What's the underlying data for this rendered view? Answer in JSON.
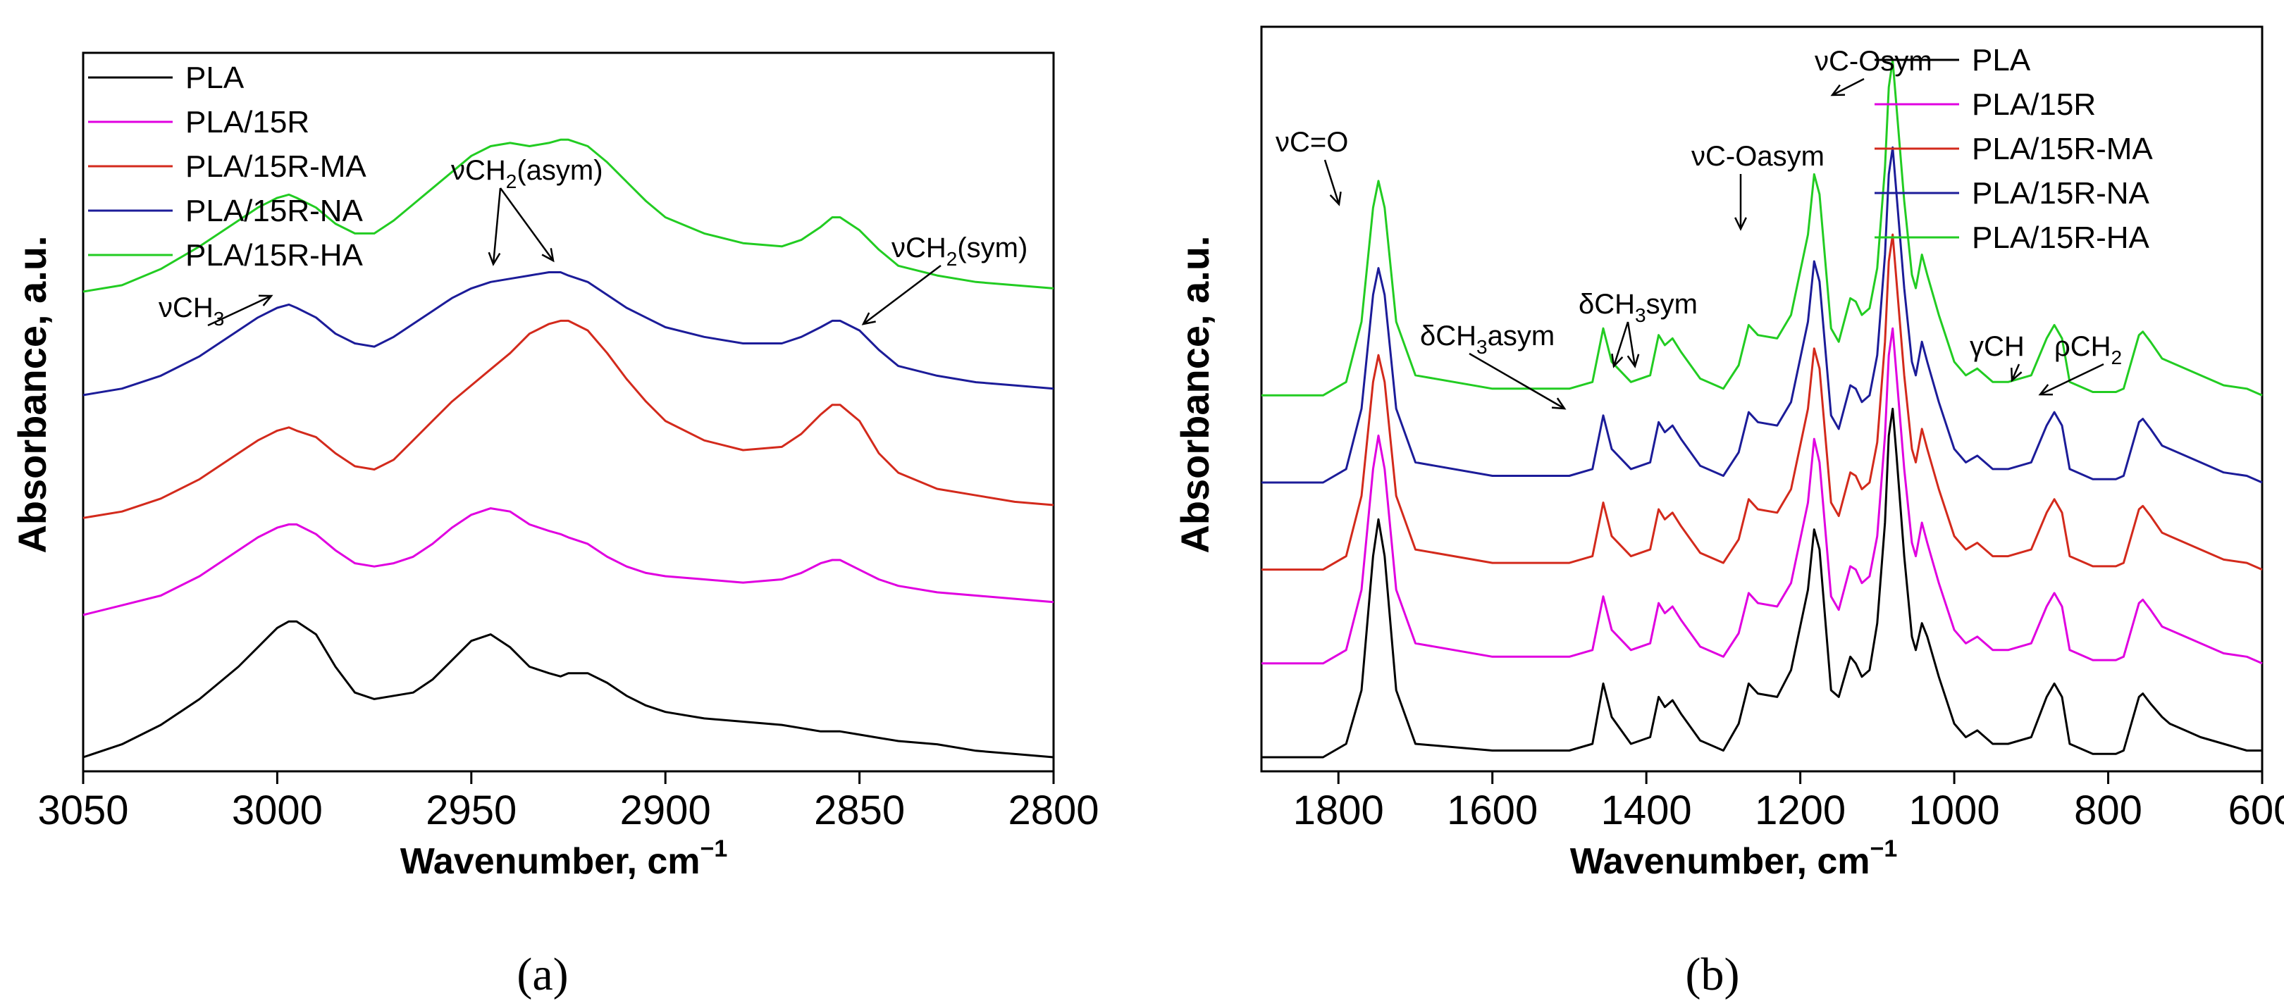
{
  "panels": [
    {
      "id": "a",
      "panel_label": "(a)",
      "xlabel": "Wavenumber, cm",
      "xlabel_sup": "−1",
      "ylabel": "Absorbance, a.u.",
      "chart_data": {
        "type": "line",
        "xlim": [
          3050,
          2800
        ],
        "x_ticks": [
          3050,
          3000,
          2950,
          2900,
          2850,
          2800
        ],
        "x_tick_labels": [
          "3050",
          "3000",
          "2950",
          "2900",
          "2850",
          "2800"
        ],
        "y_ticks_shown": false,
        "ylim": [
          0,
          1.0
        ],
        "x": [
          3050,
          3040,
          3030,
          3020,
          3010,
          3005,
          3000,
          2997,
          2995,
          2990,
          2985,
          2980,
          2975,
          2970,
          2965,
          2960,
          2955,
          2950,
          2945,
          2940,
          2935,
          2930,
          2927,
          2925,
          2920,
          2915,
          2910,
          2905,
          2900,
          2890,
          2880,
          2870,
          2865,
          2860,
          2857,
          2855,
          2850,
          2845,
          2840,
          2830,
          2820,
          2810,
          2800
        ],
        "series": [
          {
            "name": "PLA",
            "color": "#000000",
            "values": [
              0.0,
              0.02,
              0.05,
              0.09,
              0.14,
              0.17,
              0.2,
              0.21,
              0.21,
              0.19,
              0.14,
              0.1,
              0.09,
              0.095,
              0.1,
              0.12,
              0.15,
              0.18,
              0.19,
              0.17,
              0.14,
              0.13,
              0.125,
              0.13,
              0.13,
              0.115,
              0.095,
              0.08,
              0.07,
              0.06,
              0.055,
              0.05,
              0.045,
              0.04,
              0.04,
              0.04,
              0.035,
              0.03,
              0.025,
              0.02,
              0.01,
              0.005,
              0.0
            ]
          },
          {
            "name": "PLA/15R",
            "color": "#e000e0",
            "values": [
              0.22,
              0.235,
              0.25,
              0.28,
              0.32,
              0.34,
              0.355,
              0.36,
              0.36,
              0.345,
              0.32,
              0.3,
              0.295,
              0.3,
              0.31,
              0.33,
              0.355,
              0.375,
              0.385,
              0.38,
              0.36,
              0.35,
              0.345,
              0.34,
              0.33,
              0.31,
              0.295,
              0.285,
              0.28,
              0.275,
              0.27,
              0.275,
              0.285,
              0.3,
              0.305,
              0.305,
              0.29,
              0.275,
              0.265,
              0.255,
              0.25,
              0.245,
              0.24
            ]
          },
          {
            "name": "PLA/15R-MA",
            "color": "#d32a1c",
            "values": [
              0.37,
              0.38,
              0.4,
              0.43,
              0.47,
              0.49,
              0.505,
              0.51,
              0.505,
              0.495,
              0.47,
              0.45,
              0.445,
              0.46,
              0.49,
              0.52,
              0.55,
              0.575,
              0.6,
              0.625,
              0.655,
              0.67,
              0.675,
              0.675,
              0.66,
              0.625,
              0.585,
              0.55,
              0.52,
              0.49,
              0.475,
              0.48,
              0.5,
              0.53,
              0.545,
              0.545,
              0.52,
              0.47,
              0.44,
              0.415,
              0.405,
              0.395,
              0.39
            ]
          },
          {
            "name": "PLA/15R-NA",
            "color": "#1c1c99",
            "values": [
              0.56,
              0.57,
              0.59,
              0.62,
              0.66,
              0.68,
              0.695,
              0.7,
              0.695,
              0.68,
              0.655,
              0.64,
              0.635,
              0.65,
              0.67,
              0.69,
              0.71,
              0.725,
              0.735,
              0.74,
              0.745,
              0.75,
              0.75,
              0.745,
              0.735,
              0.715,
              0.695,
              0.68,
              0.665,
              0.65,
              0.64,
              0.64,
              0.65,
              0.665,
              0.675,
              0.675,
              0.66,
              0.63,
              0.605,
              0.59,
              0.58,
              0.575,
              0.57
            ]
          },
          {
            "name": "PLA/15R-HA",
            "color": "#22cc22",
            "values": [
              0.72,
              0.73,
              0.755,
              0.79,
              0.83,
              0.85,
              0.865,
              0.87,
              0.865,
              0.85,
              0.825,
              0.81,
              0.81,
              0.83,
              0.855,
              0.88,
              0.905,
              0.93,
              0.945,
              0.95,
              0.945,
              0.95,
              0.955,
              0.955,
              0.945,
              0.92,
              0.89,
              0.86,
              0.835,
              0.81,
              0.795,
              0.79,
              0.8,
              0.82,
              0.835,
              0.835,
              0.815,
              0.785,
              0.76,
              0.745,
              0.735,
              0.73,
              0.725
            ]
          }
        ],
        "annotations": [
          {
            "text": "νCH",
            "sub": "3",
            "tail": "",
            "x": 3000,
            "y": 0.87
          },
          {
            "text": "νCH",
            "sub": "2",
            "tail": "(asym)",
            "x": 2947,
            "y": 0.955
          },
          {
            "text": "νCH",
            "sub": "2",
            "tail": "(sym)",
            "x": 2855,
            "y": 0.835
          }
        ]
      }
    },
    {
      "id": "b",
      "panel_label": "(b)",
      "xlabel": "Wavenumber, cm",
      "xlabel_sup": "−1",
      "ylabel": "Absorbance, a.u.",
      "chart_data": {
        "type": "line",
        "xlim": [
          1900,
          600
        ],
        "x_ticks": [
          1800,
          1600,
          1400,
          1200,
          1000,
          800,
          600
        ],
        "x_tick_labels": [
          "1800",
          "1600",
          "1400",
          "1200",
          "1000",
          "800",
          "600"
        ],
        "y_ticks_shown": false,
        "ylim": [
          0,
          1.0
        ],
        "x": [
          1900,
          1820,
          1790,
          1770,
          1755,
          1748,
          1740,
          1725,
          1700,
          1600,
          1500,
          1470,
          1456,
          1445,
          1420,
          1395,
          1384,
          1376,
          1366,
          1355,
          1330,
          1300,
          1280,
          1267,
          1255,
          1230,
          1212,
          1190,
          1182,
          1175,
          1160,
          1150,
          1135,
          1128,
          1120,
          1110,
          1100,
          1090,
          1085,
          1080,
          1075,
          1065,
          1055,
          1050,
          1042,
          1035,
          1020,
          1000,
          985,
          970,
          960,
          950,
          930,
          900,
          880,
          870,
          860,
          850,
          820,
          790,
          780,
          760,
          755,
          745,
          730,
          720,
          700,
          680,
          650,
          620,
          600
        ],
        "series": [
          {
            "name": "PLA",
            "color": "#000000",
            "values": [
              0.0,
              0.0,
              0.02,
              0.1,
              0.3,
              0.355,
              0.3,
              0.1,
              0.02,
              0.01,
              0.01,
              0.02,
              0.11,
              0.06,
              0.02,
              0.03,
              0.09,
              0.075,
              0.085,
              0.065,
              0.025,
              0.01,
              0.05,
              0.11,
              0.095,
              0.09,
              0.13,
              0.25,
              0.34,
              0.31,
              0.1,
              0.09,
              0.15,
              0.14,
              0.12,
              0.13,
              0.2,
              0.35,
              0.48,
              0.52,
              0.45,
              0.3,
              0.18,
              0.16,
              0.2,
              0.18,
              0.12,
              0.05,
              0.03,
              0.04,
              0.03,
              0.02,
              0.02,
              0.03,
              0.09,
              0.11,
              0.09,
              0.02,
              0.005,
              0.005,
              0.01,
              0.09,
              0.095,
              0.08,
              0.06,
              0.05,
              0.04,
              0.03,
              0.02,
              0.01,
              0.01
            ]
          },
          {
            "name": "PLA/15R",
            "color": "#e000e0",
            "values": [
              0.14,
              0.14,
              0.16,
              0.25,
              0.43,
              0.48,
              0.43,
              0.25,
              0.17,
              0.15,
              0.15,
              0.16,
              0.24,
              0.19,
              0.16,
              0.17,
              0.23,
              0.215,
              0.225,
              0.205,
              0.165,
              0.15,
              0.185,
              0.245,
              0.23,
              0.225,
              0.26,
              0.38,
              0.475,
              0.44,
              0.24,
              0.22,
              0.285,
              0.28,
              0.26,
              0.27,
              0.33,
              0.48,
              0.6,
              0.64,
              0.57,
              0.43,
              0.32,
              0.3,
              0.35,
              0.32,
              0.26,
              0.19,
              0.17,
              0.18,
              0.17,
              0.16,
              0.16,
              0.17,
              0.225,
              0.245,
              0.225,
              0.16,
              0.145,
              0.145,
              0.15,
              0.23,
              0.235,
              0.22,
              0.195,
              0.19,
              0.18,
              0.17,
              0.155,
              0.15,
              0.14
            ]
          },
          {
            "name": "PLA/15R-MA",
            "color": "#d32a1c",
            "values": [
              0.28,
              0.28,
              0.3,
              0.39,
              0.56,
              0.6,
              0.56,
              0.39,
              0.31,
              0.29,
              0.29,
              0.3,
              0.38,
              0.33,
              0.3,
              0.31,
              0.37,
              0.355,
              0.365,
              0.345,
              0.305,
              0.29,
              0.325,
              0.385,
              0.37,
              0.365,
              0.4,
              0.52,
              0.61,
              0.58,
              0.38,
              0.36,
              0.425,
              0.42,
              0.4,
              0.41,
              0.47,
              0.62,
              0.74,
              0.78,
              0.71,
              0.57,
              0.46,
              0.44,
              0.49,
              0.46,
              0.4,
              0.33,
              0.31,
              0.32,
              0.31,
              0.3,
              0.3,
              0.31,
              0.365,
              0.385,
              0.365,
              0.3,
              0.285,
              0.285,
              0.29,
              0.37,
              0.375,
              0.36,
              0.335,
              0.33,
              0.32,
              0.31,
              0.295,
              0.29,
              0.28
            ]
          },
          {
            "name": "PLA/15R-NA",
            "color": "#1c1c99",
            "values": [
              0.41,
              0.41,
              0.43,
              0.52,
              0.69,
              0.73,
              0.69,
              0.52,
              0.44,
              0.42,
              0.42,
              0.43,
              0.51,
              0.46,
              0.43,
              0.44,
              0.5,
              0.485,
              0.495,
              0.475,
              0.435,
              0.42,
              0.455,
              0.515,
              0.5,
              0.495,
              0.53,
              0.65,
              0.74,
              0.71,
              0.51,
              0.49,
              0.555,
              0.55,
              0.53,
              0.54,
              0.6,
              0.75,
              0.87,
              0.91,
              0.84,
              0.7,
              0.59,
              0.57,
              0.62,
              0.59,
              0.53,
              0.46,
              0.44,
              0.45,
              0.44,
              0.43,
              0.43,
              0.44,
              0.495,
              0.515,
              0.495,
              0.43,
              0.415,
              0.415,
              0.42,
              0.5,
              0.505,
              0.49,
              0.465,
              0.46,
              0.45,
              0.44,
              0.425,
              0.42,
              0.41
            ]
          },
          {
            "name": "PLA/15R-HA",
            "color": "#22cc22",
            "values": [
              0.54,
              0.54,
              0.56,
              0.65,
              0.82,
              0.86,
              0.82,
              0.65,
              0.57,
              0.55,
              0.55,
              0.56,
              0.64,
              0.59,
              0.56,
              0.57,
              0.63,
              0.615,
              0.625,
              0.605,
              0.565,
              0.55,
              0.585,
              0.645,
              0.63,
              0.625,
              0.66,
              0.78,
              0.87,
              0.84,
              0.64,
              0.62,
              0.685,
              0.68,
              0.66,
              0.67,
              0.73,
              0.88,
              1.0,
              1.04,
              0.97,
              0.83,
              0.72,
              0.7,
              0.75,
              0.72,
              0.66,
              0.59,
              0.57,
              0.58,
              0.57,
              0.56,
              0.56,
              0.57,
              0.625,
              0.645,
              0.625,
              0.56,
              0.545,
              0.545,
              0.55,
              0.63,
              0.635,
              0.62,
              0.595,
              0.59,
              0.58,
              0.57,
              0.555,
              0.55,
              0.54
            ]
          }
        ],
        "annotations": [
          {
            "text": "νC=O",
            "sub": "",
            "tail": "",
            "x": 1748,
            "y": 0.86
          },
          {
            "text": "δCH",
            "sub": "3",
            "tail": "asym",
            "x": 1456,
            "y": 0.64
          },
          {
            "text": "δCH",
            "sub": "3",
            "tail": "sym",
            "x": 1380,
            "y": 0.63
          },
          {
            "text": "νC-Oasym",
            "sub": "",
            "tail": "",
            "x": 1182,
            "y": 0.87
          },
          {
            "text": "νC-Osym",
            "sub": "",
            "tail": "",
            "x": 1080,
            "y": 1.04
          },
          {
            "text": "γCH",
            "sub": "",
            "tail": "",
            "x": 870,
            "y": 0.645
          },
          {
            "text": "ρCH",
            "sub": "2",
            "tail": "",
            "x": 757,
            "y": 0.635
          }
        ]
      }
    }
  ]
}
